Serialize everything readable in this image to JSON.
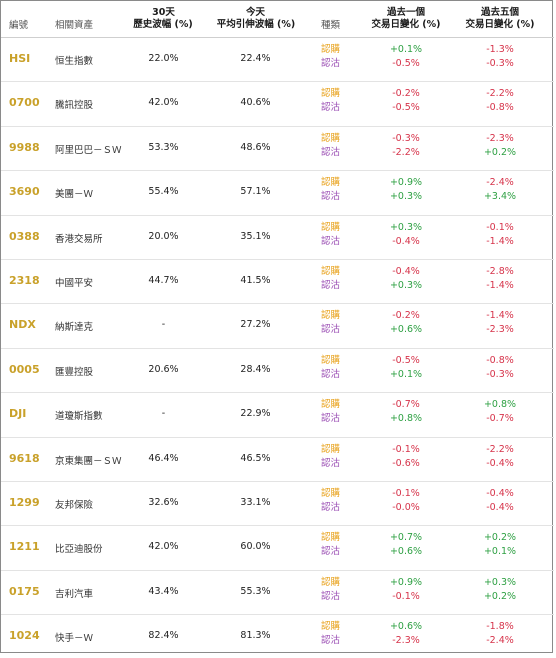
{
  "headers": {
    "code": "編號",
    "asset": "相關資產",
    "hv_line1": "30天",
    "hv_line2": "歷史波幅 (%)",
    "iv_line1": "今天",
    "iv_line2": "平均引伸波幅 (%)",
    "type": "種類",
    "chg1_line1": "過去一個",
    "chg1_line2": "交易日變化 (%)",
    "chg5_line1": "過去五個",
    "chg5_line2": "交易日變化 (%)"
  },
  "colors": {
    "code": "#c9a12a",
    "call": "#e8a11a",
    "put": "#9b4fb4",
    "positive": "#2ea043",
    "negative": "#d6334a"
  },
  "rows": [
    {
      "code": "HSI",
      "name": "恒生指數",
      "hv": "22.0%",
      "iv": "22.4%",
      "call": "認購",
      "put": "認沽",
      "c1_call": "+0.1%",
      "c1_put": "-0.5%",
      "c5_call": "-1.3%",
      "c5_put": "-0.3%"
    },
    {
      "code": "0700",
      "name": "騰訊控股",
      "hv": "42.0%",
      "iv": "40.6%",
      "call": "認購",
      "put": "認沽",
      "c1_call": "-0.2%",
      "c1_put": "-0.5%",
      "c5_call": "-2.2%",
      "c5_put": "-0.8%"
    },
    {
      "code": "9988",
      "name": "阿里巴巴－ＳＷ",
      "hv": "53.3%",
      "iv": "48.6%",
      "call": "認購",
      "put": "認沽",
      "c1_call": "-0.3%",
      "c1_put": "-2.2%",
      "c5_call": "-2.3%",
      "c5_put": "+0.2%"
    },
    {
      "code": "3690",
      "name": "美團－Ｗ",
      "hv": "55.4%",
      "iv": "57.1%",
      "call": "認購",
      "put": "認沽",
      "c1_call": "+0.9%",
      "c1_put": "+0.3%",
      "c5_call": "-2.4%",
      "c5_put": "+3.4%"
    },
    {
      "code": "0388",
      "name": "香港交易所",
      "hv": "20.0%",
      "iv": "35.1%",
      "call": "認購",
      "put": "認沽",
      "c1_call": "+0.3%",
      "c1_put": "-0.4%",
      "c5_call": "-0.1%",
      "c5_put": "-1.4%"
    },
    {
      "code": "2318",
      "name": "中國平安",
      "hv": "44.7%",
      "iv": "41.5%",
      "call": "認購",
      "put": "認沽",
      "c1_call": "-0.4%",
      "c1_put": "+0.3%",
      "c5_call": "-2.8%",
      "c5_put": "-1.4%"
    },
    {
      "code": "NDX",
      "name": "納斯達克",
      "hv": "-",
      "iv": "27.2%",
      "call": "認購",
      "put": "認沽",
      "c1_call": "-0.2%",
      "c1_put": "+0.6%",
      "c5_call": "-1.4%",
      "c5_put": "-2.3%"
    },
    {
      "code": "0005",
      "name": "匯豐控股",
      "hv": "20.6%",
      "iv": "28.4%",
      "call": "認購",
      "put": "認沽",
      "c1_call": "-0.5%",
      "c1_put": "+0.1%",
      "c5_call": "-0.8%",
      "c5_put": "-0.3%"
    },
    {
      "code": "DJI",
      "name": "道瓊斯指數",
      "hv": "-",
      "iv": "22.9%",
      "call": "認購",
      "put": "認沽",
      "c1_call": "-0.7%",
      "c1_put": "+0.8%",
      "c5_call": "+0.8%",
      "c5_put": "-0.7%"
    },
    {
      "code": "9618",
      "name": "京東集團－ＳＷ",
      "hv": "46.4%",
      "iv": "46.5%",
      "call": "認購",
      "put": "認沽",
      "c1_call": "-0.1%",
      "c1_put": "-0.6%",
      "c5_call": "-2.2%",
      "c5_put": "-0.4%"
    },
    {
      "code": "1299",
      "name": "友邦保險",
      "hv": "32.6%",
      "iv": "33.1%",
      "call": "認購",
      "put": "認沽",
      "c1_call": "-0.1%",
      "c1_put": "-0.0%",
      "c5_call": "-0.4%",
      "c5_put": "-0.4%"
    },
    {
      "code": "1211",
      "name": "比亞迪股份",
      "hv": "42.0%",
      "iv": "60.0%",
      "call": "認購",
      "put": "認沽",
      "c1_call": "+0.7%",
      "c1_put": "+0.6%",
      "c5_call": "+0.2%",
      "c5_put": "+0.1%"
    },
    {
      "code": "0175",
      "name": "吉利汽車",
      "hv": "43.4%",
      "iv": "55.3%",
      "call": "認購",
      "put": "認沽",
      "c1_call": "+0.9%",
      "c1_put": "-0.1%",
      "c5_call": "+0.3%",
      "c5_put": "+0.2%"
    },
    {
      "code": "1024",
      "name": "快手－Ｗ",
      "hv": "82.4%",
      "iv": "81.3%",
      "call": "認購",
      "put": "認沽",
      "c1_call": "+0.6%",
      "c1_put": "-2.3%",
      "c5_call": "-1.8%",
      "c5_put": "-2.4%"
    }
  ]
}
